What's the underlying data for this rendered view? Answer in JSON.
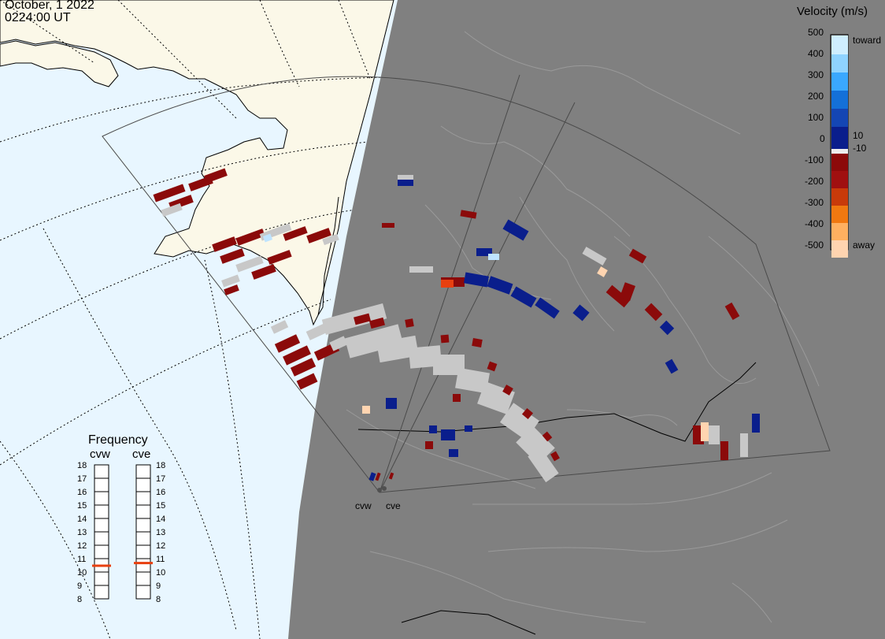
{
  "header": {
    "date": "October, 1 2022",
    "time": "0224:00 UT"
  },
  "legend": {
    "title": "Velocity (m/s)",
    "ticks": [
      "500",
      "400",
      "300",
      "200",
      "100",
      "0",
      "-100",
      "-200",
      "-300",
      "-400",
      "-500"
    ],
    "threshold_labels": [
      "10",
      "-10"
    ],
    "toward_label": "toward",
    "away_label": "away",
    "colors": [
      "#cfeeff",
      "#8fd3ff",
      "#3aa8ff",
      "#1470d8",
      "#1446b4",
      "#0a1e8c",
      "#eeeeee",
      "#8c0a0a",
      "#a01010",
      "#c83a0a",
      "#f07810",
      "#ffb060",
      "#ffd4b0"
    ]
  },
  "frequency": {
    "title": "Frequency",
    "radars": [
      {
        "name": "cvw",
        "frequency_mhz": 10.5
      },
      {
        "name": "cve",
        "frequency_mhz": 10.7
      }
    ],
    "scale": [
      "18",
      "17",
      "16",
      "15",
      "14",
      "13",
      "12",
      "11",
      "10",
      "9",
      "8"
    ]
  },
  "map": {
    "ocean_color": "#e8f6ff",
    "land_color": "#fbf8e8",
    "night_color": "#808080",
    "radar_labels": [
      "cvw",
      "cve"
    ]
  }
}
